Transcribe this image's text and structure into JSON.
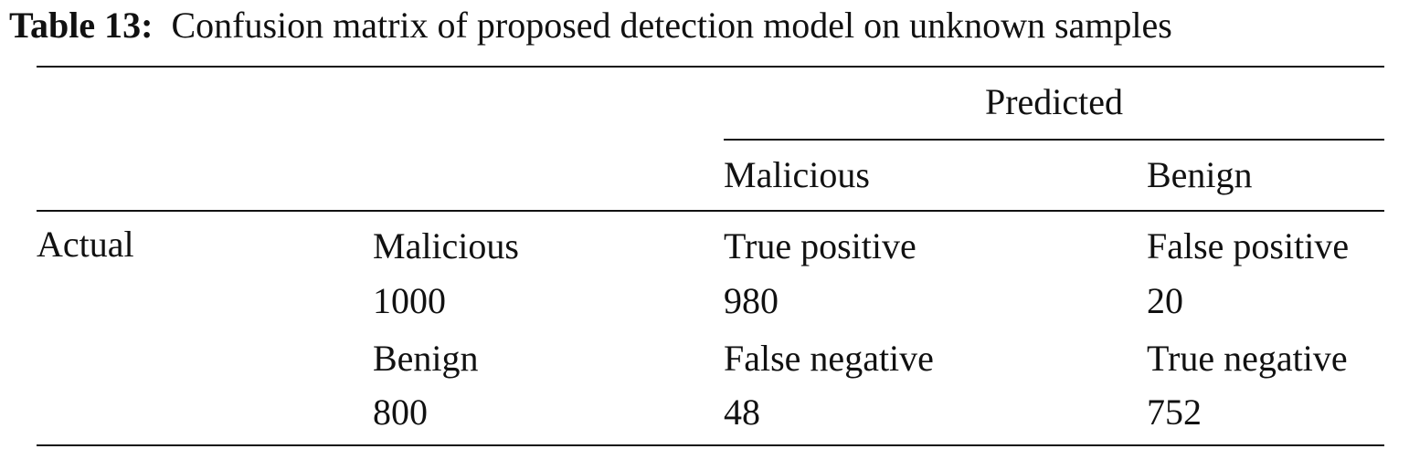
{
  "table": {
    "caption_label": "Table 13:",
    "caption": "Confusion matrix of proposed detection model on unknown samples",
    "column_group": "Predicted",
    "columns": [
      "Malicious",
      "Benign"
    ],
    "row_group": "Actual",
    "rows": [
      [
        "Malicious",
        "True positive",
        "False positive"
      ],
      [
        "1000",
        "980",
        "20"
      ],
      [
        "Benign",
        "False negative",
        "True negative"
      ],
      [
        "800",
        "48",
        "752"
      ]
    ]
  }
}
